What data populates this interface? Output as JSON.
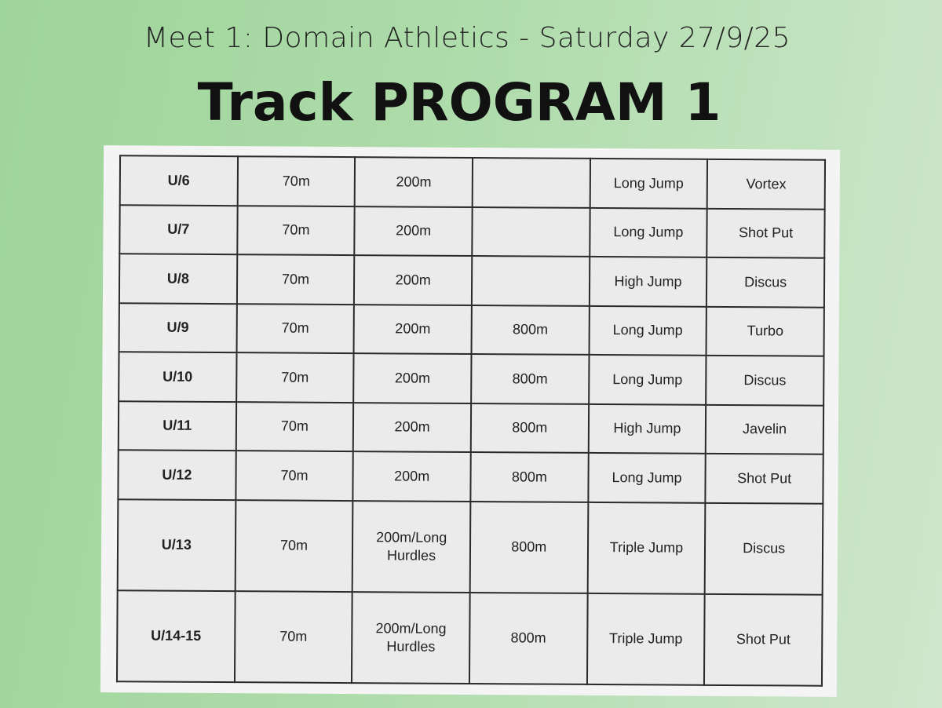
{
  "header": {
    "subtitle": "Meet 1: Domain Athletics  -  Saturday 27/9/25",
    "title": "Track PROGRAM 1"
  },
  "table": {
    "rows": [
      [
        "U/6",
        "70m",
        "200m",
        "",
        "Long Jump",
        "Vortex"
      ],
      [
        "U/7",
        "70m",
        "200m",
        "",
        "Long Jump",
        "Shot Put"
      ],
      [
        "U/8",
        "70m",
        "200m",
        "",
        "High Jump",
        "Discus"
      ],
      [
        "U/9",
        "70m",
        "200m",
        "800m",
        "Long Jump",
        "Turbo"
      ],
      [
        "U/10",
        "70m",
        "200m",
        "800m",
        "Long Jump",
        "Discus"
      ],
      [
        "U/11",
        "70m",
        "200m",
        "800m",
        "High Jump",
        "Javelin"
      ],
      [
        "U/12",
        "70m",
        "200m",
        "800m",
        "Long Jump",
        "Shot Put"
      ],
      [
        "U/13",
        "70m",
        "200m/Long Hurdles",
        "800m",
        "Triple Jump",
        "Discus"
      ],
      [
        "U/14-15",
        "70m",
        "200m/Long Hurdles",
        "800m",
        "Triple Jump",
        "Shot Put"
      ]
    ]
  },
  "colors": {
    "background": "#aedcab",
    "panel": "#f4f4f4",
    "cell": "#ebebeb"
  }
}
